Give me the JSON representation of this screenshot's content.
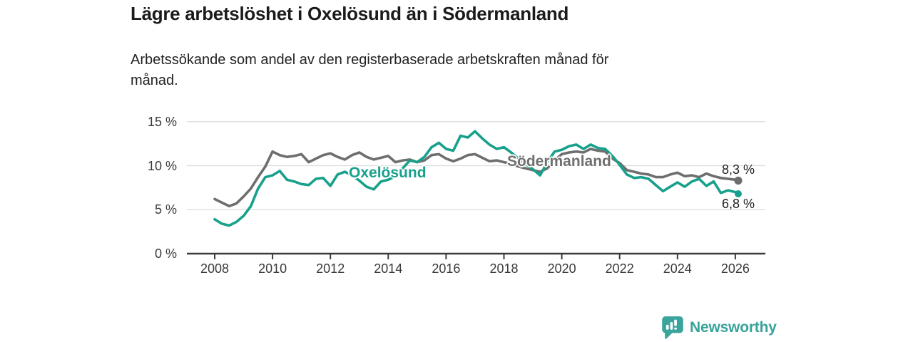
{
  "header": {
    "title": "Lägre arbetslöshet i Oxelösund än i Södermanland",
    "subtitle_line1": "Arbetssökande som andel av den registerbaserade arbetskraften månad för",
    "subtitle_line2": "månad."
  },
  "chart_data": {
    "type": "line",
    "title": "Lägre arbetslöshet i Oxelösund än i Södermanland",
    "subtitle": "Arbetssökande som andel av den registerbaserade arbetskraften månad för månad.",
    "unit": "%",
    "grid": "horizontal",
    "legend_position": "inline-labels",
    "ylim": [
      0,
      15
    ],
    "yticks": [
      0,
      5,
      10,
      15
    ],
    "ytick_labels": [
      "0 %",
      "5 %",
      "10 %",
      "15 %"
    ],
    "xticks": [
      2008,
      2010,
      2012,
      2014,
      2016,
      2018,
      2020,
      2022,
      2024,
      2026
    ],
    "xtick_labels": [
      "2008",
      "2010",
      "2012",
      "2014",
      "2016",
      "2018",
      "2020",
      "2022",
      "2024",
      "2026"
    ],
    "x": [
      2008,
      2008.25,
      2008.5,
      2008.75,
      2009,
      2009.25,
      2009.5,
      2009.75,
      2010,
      2010.25,
      2010.5,
      2010.75,
      2011,
      2011.25,
      2011.5,
      2011.75,
      2012,
      2012.25,
      2012.5,
      2012.75,
      2013,
      2013.25,
      2013.5,
      2013.75,
      2014,
      2014.25,
      2014.5,
      2014.75,
      2015,
      2015.25,
      2015.5,
      2015.75,
      2016,
      2016.25,
      2016.5,
      2016.75,
      2017,
      2017.25,
      2017.5,
      2017.75,
      2018,
      2018.25,
      2018.5,
      2018.75,
      2019,
      2019.25,
      2019.5,
      2019.75,
      2020,
      2020.25,
      2020.5,
      2020.75,
      2021,
      2021.25,
      2021.5,
      2021.75,
      2022,
      2022.25,
      2022.5,
      2022.75,
      2023,
      2023.25,
      2023.5,
      2023.75,
      2024,
      2024.25,
      2024.5,
      2024.75,
      2025,
      2025.25,
      2025.5,
      2025.75,
      2026,
      2026.1
    ],
    "series": [
      {
        "name": "Oxelösund",
        "color": "#17a08c",
        "end_label": "6,8 %",
        "end_value": 6.8,
        "values": [
          3.9,
          3.4,
          3.2,
          3.6,
          4.3,
          5.4,
          7.4,
          8.7,
          8.9,
          9.4,
          8.4,
          8.2,
          7.9,
          7.8,
          8.5,
          8.6,
          7.7,
          9.0,
          9.3,
          8.9,
          8.3,
          7.6,
          7.3,
          8.2,
          8.4,
          8.8,
          9.7,
          10.6,
          10.4,
          11.0,
          12.1,
          12.6,
          11.9,
          11.7,
          13.4,
          13.2,
          13.9,
          13.1,
          12.4,
          11.9,
          12.1,
          11.5,
          10.8,
          10.2,
          9.6,
          8.9,
          10.4,
          11.6,
          11.8,
          12.2,
          12.4,
          11.9,
          12.4,
          12.0,
          11.9,
          11.1,
          10.1,
          9.0,
          8.6,
          8.7,
          8.5,
          7.8,
          7.1,
          7.6,
          8.1,
          7.6,
          8.2,
          8.5,
          7.7,
          8.2,
          6.9,
          7.2,
          7.0,
          6.8
        ]
      },
      {
        "name": "Södermanland",
        "color": "#6e6e6e",
        "end_label": "8,3 %",
        "end_value": 8.3,
        "values": [
          6.2,
          5.8,
          5.4,
          5.7,
          6.5,
          7.4,
          8.7,
          9.9,
          11.6,
          11.2,
          11.0,
          11.1,
          11.3,
          10.4,
          10.8,
          11.2,
          11.4,
          11.0,
          10.7,
          11.2,
          11.5,
          11.0,
          10.7,
          10.9,
          11.1,
          10.4,
          10.6,
          10.7,
          10.4,
          10.6,
          11.2,
          11.3,
          10.8,
          10.5,
          10.8,
          11.2,
          11.3,
          10.9,
          10.5,
          10.6,
          10.4,
          10.2,
          9.9,
          9.7,
          9.5,
          9.3,
          9.7,
          10.6,
          11.3,
          11.5,
          11.6,
          11.5,
          11.9,
          11.7,
          11.6,
          10.8,
          10.3,
          9.5,
          9.3,
          9.1,
          9.0,
          8.7,
          8.7,
          9.0,
          9.2,
          8.8,
          8.9,
          8.7,
          9.1,
          8.8,
          8.6,
          8.5,
          8.4,
          8.3
        ]
      }
    ],
    "colors": {
      "axis": "#3b3b3b",
      "grid": "#dcdcdc",
      "oxelosund": "#17a08c",
      "sodermanland": "#6e6e6e"
    }
  },
  "footer": {
    "brand": "Newsworthy",
    "brand_color": "#38a39b",
    "logo_icon": "speech-bubble-bar-chart-icon"
  }
}
